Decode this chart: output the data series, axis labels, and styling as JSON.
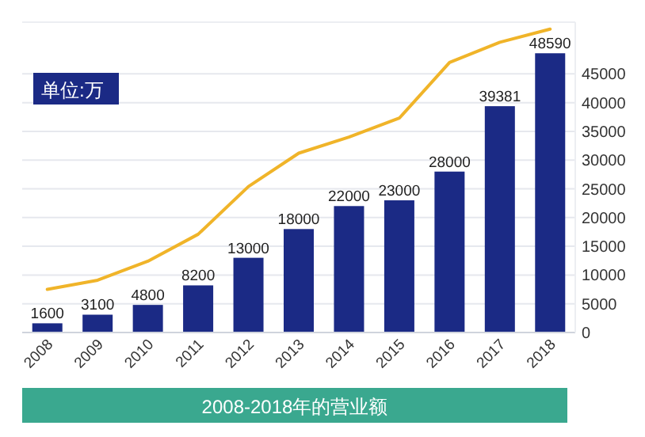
{
  "chart_data": {
    "type": "bar",
    "title": "2008-2018年的营业额",
    "annotations": [
      "单位:万"
    ],
    "categories": [
      "2008",
      "2009",
      "2010",
      "2011",
      "2012",
      "2013",
      "2014",
      "2015",
      "2016",
      "2017",
      "2018"
    ],
    "series": [
      {
        "color": "#1b2a85",
        "values": [
          1600,
          3100,
          4800,
          8200,
          13000,
          18000,
          22000,
          23000,
          28000,
          39381,
          48590
        ],
        "value_labels": [
          "1600",
          "3100",
          "4800",
          "8200",
          "13000",
          "18000",
          "22000",
          "23000",
          "28000",
          "39381",
          "48590"
        ]
      },
      {
        "type": "line",
        "color": "#f0b429",
        "values": [
          7500,
          9100,
          12400,
          17100,
          25400,
          31200,
          34000,
          37300,
          47000,
          50500,
          52800
        ]
      }
    ],
    "ylim": [
      0,
      54000
    ],
    "yticks": [
      0,
      5000,
      10000,
      15000,
      20000,
      25000,
      30000,
      35000,
      40000,
      45000
    ],
    "grid": "y",
    "marker": "none"
  }
}
